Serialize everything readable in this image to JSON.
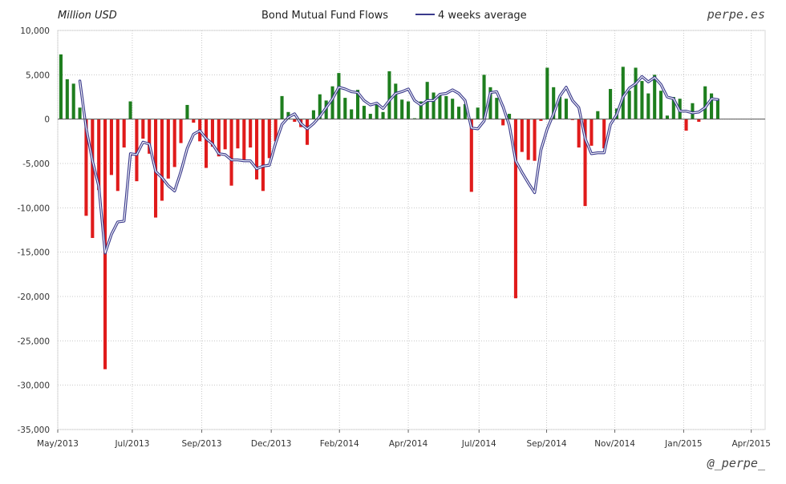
{
  "chart_data": {
    "type": "bar",
    "title": "Bond Mutual Fund Flows",
    "ylabel": "Million USD",
    "ylim": [
      -35000,
      10000
    ],
    "yticks": [
      10000,
      5000,
      0,
      -5000,
      -10000,
      -15000,
      -20000,
      -25000,
      -30000,
      -35000
    ],
    "ytick_labels": [
      "10,000",
      "5,000",
      "0",
      "-5,000",
      "-10,000",
      "-15,000",
      "-20,000",
      "-25,000",
      "-30,000",
      "-35,000"
    ],
    "xtick_labels": [
      "May/2013",
      "Jul/2013",
      "Sep/2013",
      "Dec/2013",
      "Feb/2014",
      "Apr/2014",
      "Jul/2014",
      "Sep/2014",
      "Nov/2014",
      "Jan/2015",
      "Apr/2015"
    ],
    "xtick_weeks": [
      0,
      11.8,
      22.8,
      33.8,
      44.6,
      55.5,
      66.7,
      77.4,
      88.2,
      99.1,
      109.8
    ],
    "n_weeks": 112,
    "grid": true,
    "legend_position": "top",
    "positive_color": "#1e7e1e",
    "negative_color": "#e01b1b",
    "line_color": "#3a3a8c",
    "series": [
      {
        "name": "Bond Mutual Fund Flows",
        "values": [
          7300,
          4500,
          4000,
          1300,
          -10900,
          -13400,
          -8000,
          -28200,
          -6300,
          -8100,
          -3200,
          2000,
          -7000,
          -2200,
          -3900,
          -11100,
          -9200,
          -6700,
          -5400,
          -2700,
          1600,
          -400,
          -2500,
          -5500,
          -3100,
          -4200,
          -3400,
          -7500,
          -3300,
          -4700,
          -3200,
          -6800,
          -8100,
          -4400,
          -2500,
          2600,
          800,
          -300,
          -900,
          -2900,
          1000,
          2800,
          2100,
          3700,
          5200,
          2400,
          1100,
          3300,
          1500,
          600,
          1700,
          800,
          5400,
          4000,
          2200,
          2000,
          100,
          2000,
          4200,
          3000,
          2800,
          2600,
          2300,
          1400,
          1700,
          -8200,
          1300,
          5000,
          3600,
          2400,
          -700,
          600,
          -20200,
          -3700,
          -4600,
          -4700,
          -200,
          5800,
          3600,
          2500,
          2300,
          -100,
          -3200,
          -9800,
          -3000,
          900,
          -3300,
          3400,
          1200,
          5900,
          3200,
          5800,
          4300,
          2900,
          5000,
          3200,
          400,
          2500,
          2300,
          -1300,
          1800,
          -300,
          3700,
          2900,
          2300
        ]
      },
      {
        "name": "4 weeks average",
        "values": [
          null,
          null,
          null,
          4300,
          -1000,
          -4700,
          -7600,
          -15100,
          -13000,
          -11600,
          -11500,
          -3900,
          -4000,
          -2600,
          -2800,
          -5900,
          -6600,
          -7500,
          -8100,
          -5900,
          -3300,
          -1700,
          -1300,
          -2200,
          -2800,
          -3900,
          -4000,
          -4600,
          -4600,
          -4700,
          -4700,
          -5600,
          -5300,
          -5200,
          -2700,
          -600,
          200,
          600,
          -500,
          -1100,
          -500,
          300,
          1300,
          2300,
          3600,
          3400,
          3100,
          3000,
          2100,
          1600,
          1800,
          1200,
          2100,
          2900,
          3100,
          3400,
          2100,
          1600,
          2100,
          2100,
          2800,
          2900,
          3300,
          2900,
          2100,
          -1000,
          -1100,
          -200,
          3000,
          3100,
          1400,
          -700,
          -4700,
          -6000,
          -7200,
          -8300,
          -3500,
          -1100,
          600,
          2600,
          3600,
          2100,
          1300,
          -2200,
          -3900,
          -3800,
          -3800,
          -600,
          500,
          2500,
          3500,
          4000,
          4800,
          4200,
          4700,
          3900,
          2500,
          2300,
          900,
          900,
          700,
          800,
          1300,
          2300,
          2200
        ]
      }
    ],
    "branding": {
      "top_right": "perpe.es",
      "bottom_right": "@_perpe_"
    }
  }
}
